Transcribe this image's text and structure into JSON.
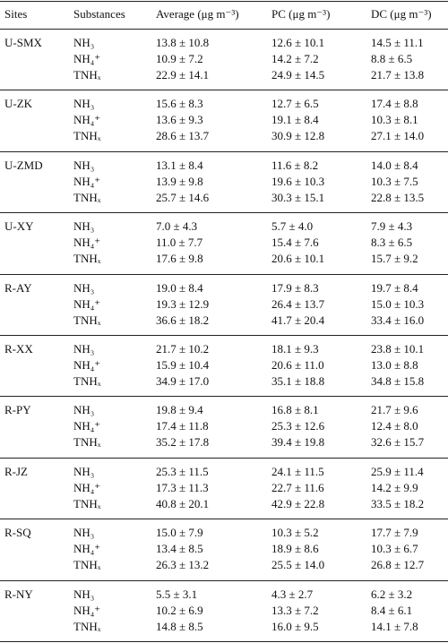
{
  "table": {
    "header": [
      "Sites",
      "Substances",
      "Average (μg m⁻³)",
      "PC (μg m⁻³)",
      "DC (μg m⁻³)"
    ],
    "groups": [
      {
        "site": "U-SMX",
        "rows": [
          [
            "NH₃",
            "13.8 ± 10.8",
            "12.6 ± 10.1",
            "14.5 ± 11.1"
          ],
          [
            "NH₄⁺",
            "10.9 ± 7.2",
            "14.2 ± 7.2",
            "8.8 ± 6.5"
          ],
          [
            "TNHₓ",
            "22.9 ± 14.1",
            "24.9 ± 14.5",
            "21.7 ± 13.8"
          ]
        ]
      },
      {
        "site": "U-ZK",
        "rows": [
          [
            "NH₃",
            "15.6 ± 8.3",
            "12.7 ± 6.5",
            "17.4 ± 8.8"
          ],
          [
            "NH₄⁺",
            "13.6 ± 9.3",
            "19.1 ± 8.4",
            "10.3 ± 8.1"
          ],
          [
            "TNHₓ",
            "28.6 ± 13.7",
            "30.9 ± 12.8",
            "27.1 ± 14.0"
          ]
        ]
      },
      {
        "site": "U-ZMD",
        "rows": [
          [
            "NH₃",
            "13.1 ± 8.4",
            "11.6 ± 8.2",
            "14.0 ± 8.4"
          ],
          [
            "NH₄⁺",
            "13.9 ± 9.8",
            "19.6 ± 10.3",
            "10.3 ± 7.5"
          ],
          [
            "TNHₓ",
            "25.7 ± 14.6",
            "30.3 ± 15.1",
            "22.8 ± 13.5"
          ]
        ]
      },
      {
        "site": "U-XY",
        "rows": [
          [
            "NH₃",
            "7.0 ± 4.3",
            "5.7 ± 4.0",
            "7.9 ± 4.3"
          ],
          [
            "NH₄⁺",
            "11.0 ± 7.7",
            "15.4 ± 7.6",
            "8.3 ± 6.5"
          ],
          [
            "TNHₓ",
            "17.6 ± 9.8",
            "20.6 ± 10.1",
            "15.7 ± 9.2"
          ]
        ]
      },
      {
        "site": "R-AY",
        "rows": [
          [
            "NH₃",
            "19.0 ± 8.4",
            "17.9 ± 8.3",
            "19.7 ± 8.4"
          ],
          [
            "NH₄⁺",
            "19.3 ± 12.9",
            "26.4 ± 13.7",
            "15.0 ± 10.3"
          ],
          [
            "TNHₓ",
            "36.6 ± 18.2",
            "41.7 ± 20.4",
            "33.4 ± 16.0"
          ]
        ]
      },
      {
        "site": "R-XX",
        "rows": [
          [
            "NH₃",
            "21.7 ± 10.2",
            "18.1 ± 9.3",
            "23.8 ± 10.1"
          ],
          [
            "NH₄⁺",
            "15.9 ± 10.4",
            "20.6 ± 11.0",
            "13.0 ± 8.8"
          ],
          [
            "TNHₓ",
            "34.9 ± 17.0",
            "35.1 ± 18.8",
            "34.8 ± 15.8"
          ]
        ]
      },
      {
        "site": "R-PY",
        "rows": [
          [
            "NH₃",
            "19.8 ± 9.4",
            "16.8 ± 8.1",
            "21.7 ± 9.6"
          ],
          [
            "NH₄⁺",
            "17.4 ± 11.8",
            "25.3 ± 12.6",
            "12.4 ± 8.0"
          ],
          [
            "TNHₓ",
            "35.2 ± 17.8",
            "39.4 ± 19.8",
            "32.6 ± 15.7"
          ]
        ]
      },
      {
        "site": "R-JZ",
        "rows": [
          [
            "NH₃",
            "25.3 ± 11.5",
            "24.1 ± 11.5",
            "25.9 ± 11.4"
          ],
          [
            "NH₄⁺",
            "17.3 ± 11.3",
            "22.7 ± 11.6",
            "14.2 ± 9.9"
          ],
          [
            "TNHₓ",
            "40.8 ± 20.1",
            "42.9 ± 22.8",
            "33.5 ± 18.2"
          ]
        ]
      },
      {
        "site": "R-SQ",
        "rows": [
          [
            "NH₃",
            "15.0 ± 7.9",
            "10.3 ± 5.2",
            "17.7 ± 7.9"
          ],
          [
            "NH₄⁺",
            "13.4 ± 8.5",
            "18.9 ± 8.6",
            "10.3 ± 6.7"
          ],
          [
            "TNHₓ",
            "26.3 ± 13.2",
            "25.5 ± 14.0",
            "26.8 ± 12.7"
          ]
        ]
      },
      {
        "site": "R-NY",
        "rows": [
          [
            "NH₃",
            "5.5 ± 3.1",
            "4.3 ± 2.7",
            "6.2 ± 3.2"
          ],
          [
            "NH₄⁺",
            "10.2 ± 6.9",
            "13.3 ± 7.2",
            "8.4 ± 6.1"
          ],
          [
            "TNHₓ",
            "14.8 ± 8.5",
            "16.0 ± 9.5",
            "14.1 ± 7.8"
          ]
        ]
      }
    ]
  }
}
